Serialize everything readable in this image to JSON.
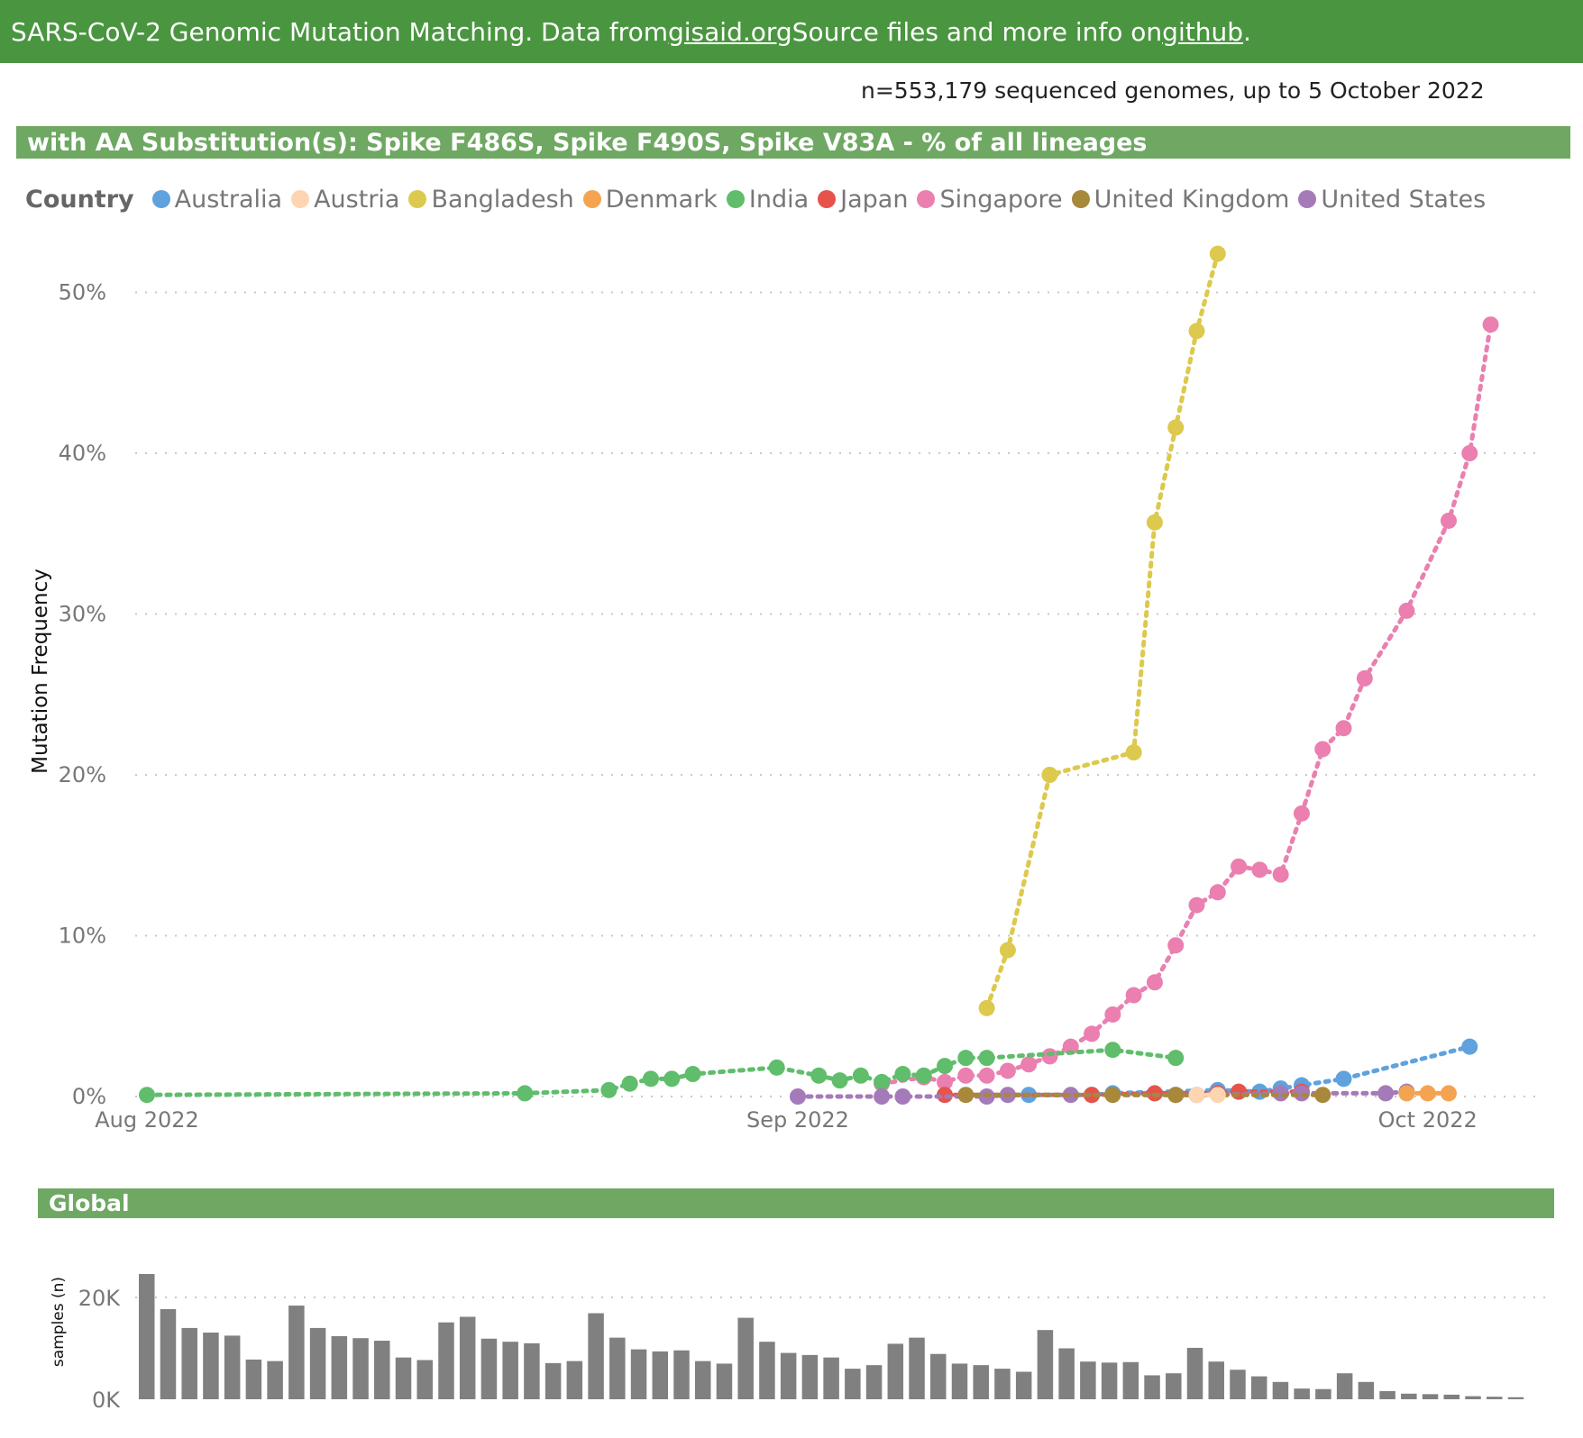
{
  "header": {
    "pre": "SARS-CoV-2 Genomic Mutation Matching. Data from ",
    "link1": "gisaid.org",
    "mid": " Source files and more info on ",
    "link2": "github",
    "post": "."
  },
  "subtitle": "n=553,179 sequenced genomes, up to 5 October 2022",
  "section_title": "with AA Substitution(s): Spike F486S, Spike F490S, Spike V83A - % of all lineages",
  "global_title": "Global",
  "legend_title": "Country",
  "colors": {
    "Australia": "#5fa2dd",
    "Austria": "#fdd5b1",
    "Bangladesh": "#dcc94d",
    "Denmark": "#f4a450",
    "India": "#5fbd6c",
    "Japan": "#e5534b",
    "Singapore": "#ea7fb0",
    "United Kingdom": "#a8883a",
    "United States": "#a57ab8"
  },
  "chart_data": [
    {
      "type": "line",
      "ylabel": "Mutation Frequency",
      "xlabel": "",
      "x_type": "date",
      "xlim": [
        "2022-08-01",
        "2022-10-04"
      ],
      "ylim": [
        0,
        52.5
      ],
      "x_ticks": [
        {
          "date": "2022-08-01",
          "label": "Aug 2022"
        },
        {
          "date": "2022-09-01",
          "label": "Sep 2022"
        },
        {
          "date": "2022-10-01",
          "label": "Oct 2022"
        }
      ],
      "y_ticks": [
        {
          "value": 0,
          "label": "0%"
        },
        {
          "value": 10,
          "label": "10%"
        },
        {
          "value": 20,
          "label": "20%"
        },
        {
          "value": 30,
          "label": "30%"
        },
        {
          "value": 40,
          "label": "40%"
        },
        {
          "value": 50,
          "label": "50%"
        }
      ],
      "legend_position": "top",
      "grid": true,
      "series": [
        {
          "name": "Bangladesh",
          "x": [
            "2022-09-10",
            "2022-09-11",
            "2022-09-13",
            "2022-09-17",
            "2022-09-18",
            "2022-09-19",
            "2022-09-20",
            "2022-09-21"
          ],
          "y": [
            5.5,
            9.1,
            20.0,
            21.4,
            35.7,
            41.6,
            47.6,
            52.4
          ]
        },
        {
          "name": "Singapore",
          "x": [
            "2022-09-05",
            "2022-09-07",
            "2022-09-08",
            "2022-09-09",
            "2022-09-10",
            "2022-09-11",
            "2022-09-12",
            "2022-09-13",
            "2022-09-14",
            "2022-09-15",
            "2022-09-16",
            "2022-09-17",
            "2022-09-18",
            "2022-09-19",
            "2022-09-20",
            "2022-09-21",
            "2022-09-22",
            "2022-09-23",
            "2022-09-24",
            "2022-09-25",
            "2022-09-26",
            "2022-09-27",
            "2022-09-28",
            "2022-09-30",
            "2022-10-02",
            "2022-10-03",
            "2022-10-04"
          ],
          "y": [
            0.8,
            1.2,
            0.9,
            1.3,
            1.3,
            1.6,
            2.0,
            2.5,
            3.1,
            3.9,
            5.1,
            6.3,
            7.1,
            9.4,
            11.9,
            12.7,
            14.3,
            14.1,
            13.8,
            17.6,
            21.6,
            22.9,
            26.0,
            30.2,
            35.8,
            40.0,
            48.0
          ]
        },
        {
          "name": "India",
          "x": [
            "2022-08-01",
            "2022-08-19",
            "2022-08-23",
            "2022-08-24",
            "2022-08-25",
            "2022-08-26",
            "2022-08-27",
            "2022-08-31",
            "2022-09-02",
            "2022-09-03",
            "2022-09-04",
            "2022-09-05",
            "2022-09-06",
            "2022-09-07",
            "2022-09-08",
            "2022-09-09",
            "2022-09-10",
            "2022-09-16",
            "2022-09-19"
          ],
          "y": [
            0.1,
            0.2,
            0.4,
            0.8,
            1.1,
            1.1,
            1.4,
            1.8,
            1.3,
            1.0,
            1.3,
            0.9,
            1.4,
            1.3,
            1.9,
            2.4,
            2.4,
            2.9,
            2.4
          ]
        },
        {
          "name": "Australia",
          "x": [
            "2022-09-12",
            "2022-09-15",
            "2022-09-16",
            "2022-09-21",
            "2022-09-23",
            "2022-09-24",
            "2022-09-25",
            "2022-09-27",
            "2022-10-03"
          ],
          "y": [
            0.1,
            0.1,
            0.2,
            0.4,
            0.3,
            0.5,
            0.7,
            1.1,
            3.1
          ]
        },
        {
          "name": "Japan",
          "x": [
            "2022-09-08",
            "2022-09-15",
            "2022-09-18",
            "2022-09-21",
            "2022-09-22",
            "2022-09-25"
          ],
          "y": [
            0.1,
            0.1,
            0.2,
            0.2,
            0.3,
            0.3
          ]
        },
        {
          "name": "United States",
          "x": [
            "2022-09-01",
            "2022-09-05",
            "2022-09-06",
            "2022-09-10",
            "2022-09-11",
            "2022-09-14",
            "2022-09-19",
            "2022-09-20",
            "2022-09-24",
            "2022-09-25",
            "2022-09-29",
            "2022-09-30"
          ],
          "y": [
            0.0,
            0.0,
            0.0,
            0.0,
            0.1,
            0.1,
            0.1,
            0.1,
            0.2,
            0.2,
            0.2,
            0.3
          ]
        },
        {
          "name": "United Kingdom",
          "x": [
            "2022-09-09",
            "2022-09-16",
            "2022-09-19",
            "2022-09-26"
          ],
          "y": [
            0.1,
            0.1,
            0.1,
            0.1
          ]
        },
        {
          "name": "Denmark",
          "x": [
            "2022-09-30",
            "2022-10-01",
            "2022-10-02"
          ],
          "y": [
            0.2,
            0.2,
            0.2
          ]
        },
        {
          "name": "Austria",
          "x": [
            "2022-09-20",
            "2022-09-21"
          ],
          "y": [
            0.1,
            0.1
          ]
        }
      ]
    },
    {
      "type": "bar",
      "ylabel": "samples (n)",
      "xlabel": "",
      "ylim": [
        0,
        25000
      ],
      "y_ticks": [
        {
          "value": 0,
          "label": "0K"
        },
        {
          "value": 20000,
          "label": "20K"
        }
      ],
      "grid": true,
      "values": [
        24600,
        17700,
        14000,
        13100,
        12500,
        7800,
        7500,
        18400,
        14000,
        12400,
        12000,
        11500,
        8200,
        7700,
        15100,
        16200,
        11900,
        11300,
        11000,
        7100,
        7500,
        16900,
        12100,
        9800,
        9400,
        9600,
        7500,
        7000,
        16000,
        11300,
        9100,
        8700,
        8200,
        6000,
        6700,
        10900,
        12100,
        8900,
        7000,
        6700,
        6000,
        5400,
        13600,
        10000,
        7400,
        7200,
        7300,
        4700,
        5100,
        10100,
        7400,
        5800,
        4500,
        3400,
        2100,
        2000,
        5100,
        3400,
        1600,
        1100,
        1000,
        900,
        600,
        500,
        400
      ]
    }
  ]
}
